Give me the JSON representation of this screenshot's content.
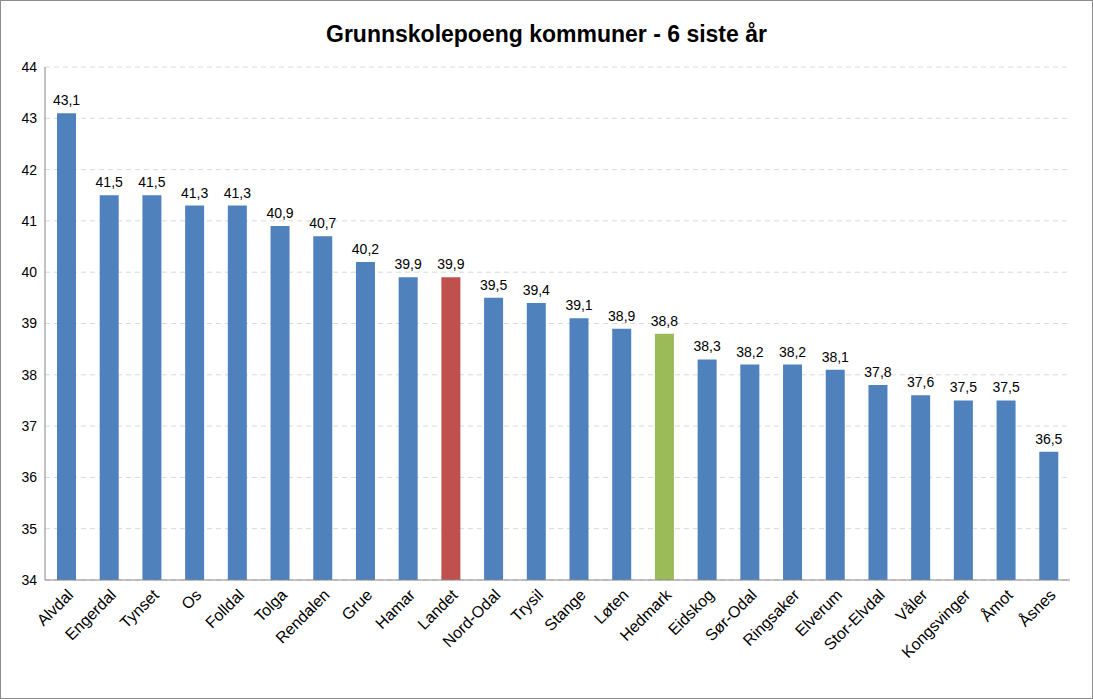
{
  "chart_data": {
    "type": "bar",
    "title": "Grunnskolepoeng kommuner - 6 siste år",
    "categories": [
      "Alvdal",
      "Engerdal",
      "Tynset",
      "Os",
      "Folldal",
      "Tolga",
      "Rendalen",
      "Grue",
      "Hamar",
      "Landet",
      "Nord-Odal",
      "Trysil",
      "Stange",
      "Løten",
      "Hedmark",
      "Eidskog",
      "Sør-Odal",
      "Ringsaker",
      "Elverum",
      "Stor-Elvdal",
      "Våler",
      "Kongsvinger",
      "Åmot",
      "Åsnes"
    ],
    "values": [
      43.1,
      41.5,
      41.5,
      41.3,
      41.3,
      40.9,
      40.7,
      40.2,
      39.9,
      39.9,
      39.5,
      39.4,
      39.1,
      38.9,
      38.8,
      38.3,
      38.2,
      38.2,
      38.1,
      37.8,
      37.6,
      37.5,
      37.5,
      36.5
    ],
    "value_labels": [
      "43,1",
      "41,5",
      "41,5",
      "41,3",
      "41,3",
      "40,9",
      "40,7",
      "40,2",
      "39,9",
      "39,9",
      "39,5",
      "39,4",
      "39,1",
      "38,9",
      "38,8",
      "38,3",
      "38,2",
      "38,2",
      "38,1",
      "37,8",
      "37,6",
      "37,5",
      "37,5",
      "36,5"
    ],
    "colors": [
      "#4f81bd",
      "#4f81bd",
      "#4f81bd",
      "#4f81bd",
      "#4f81bd",
      "#4f81bd",
      "#4f81bd",
      "#4f81bd",
      "#4f81bd",
      "#c0504d",
      "#4f81bd",
      "#4f81bd",
      "#4f81bd",
      "#4f81bd",
      "#9bbb59",
      "#4f81bd",
      "#4f81bd",
      "#4f81bd",
      "#4f81bd",
      "#4f81bd",
      "#4f81bd",
      "#4f81bd",
      "#4f81bd",
      "#4f81bd"
    ],
    "ylim": [
      34,
      44
    ],
    "yticks": [
      34,
      35,
      36,
      37,
      38,
      39,
      40,
      41,
      42,
      43,
      44
    ],
    "grid": true,
    "data_labels": true
  }
}
